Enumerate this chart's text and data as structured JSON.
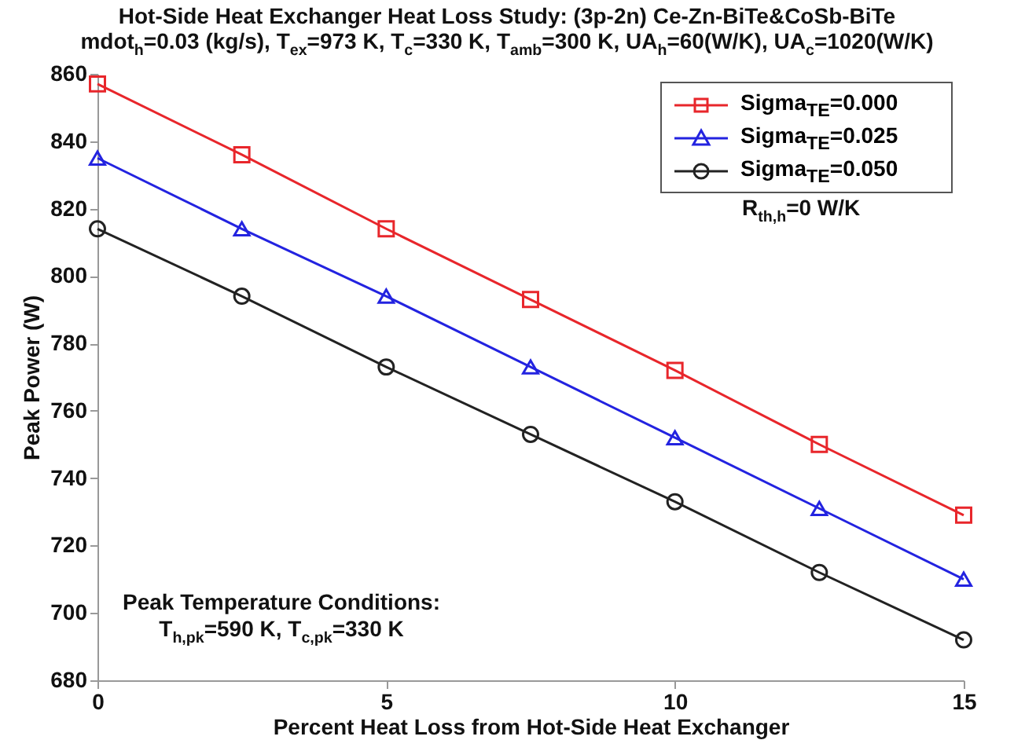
{
  "chart_data": {
    "type": "line",
    "title": "Hot-Side Heat Exchanger Heat Loss Study: (3p-2n) Ce-Zn-BiTe&CoSb-BiTe",
    "subtitle": "mdot$_{h}$=0.03 (kg/s), T$_{ex}$=973 K, T$_{c}$=330 K, T$_{amb}$=300 K, UA$_{h}$=60(W/K), UA$_{c}$=1020(W/K)",
    "xlabel": "Percent Heat Loss from Hot-Side Heat Exchanger",
    "ylabel": "Peak Power (W)",
    "x": [
      0,
      2.5,
      5,
      7.5,
      10,
      12.5,
      15
    ],
    "series": [
      {
        "name": "Sigma$_{TE}$=0.000",
        "color": "#e8262b",
        "marker": "square",
        "values": [
          857,
          836,
          814,
          793,
          772,
          750,
          729
        ]
      },
      {
        "name": "Sigma$_{TE}$=0.025",
        "color": "#2323e0",
        "marker": "triangle",
        "values": [
          835,
          814,
          794,
          773,
          752,
          731,
          710
        ]
      },
      {
        "name": "Sigma$_{TE}$=0.050",
        "color": "#222222",
        "marker": "circle",
        "values": [
          814,
          794,
          773,
          753,
          733,
          712,
          692
        ]
      }
    ],
    "xlim": [
      0,
      15
    ],
    "xticks": [
      0,
      5,
      10,
      15
    ],
    "ylim": [
      680,
      860
    ],
    "yticks": [
      680,
      700,
      720,
      740,
      760,
      780,
      800,
      820,
      840,
      860
    ],
    "legend": "top right",
    "annotations": [
      "R$_{th,h}$=0 W/K",
      "Peak Temperature Conditions:\nT$_{h,pk}$=590 K, T$_{c,pk}$=330 K"
    ]
  }
}
